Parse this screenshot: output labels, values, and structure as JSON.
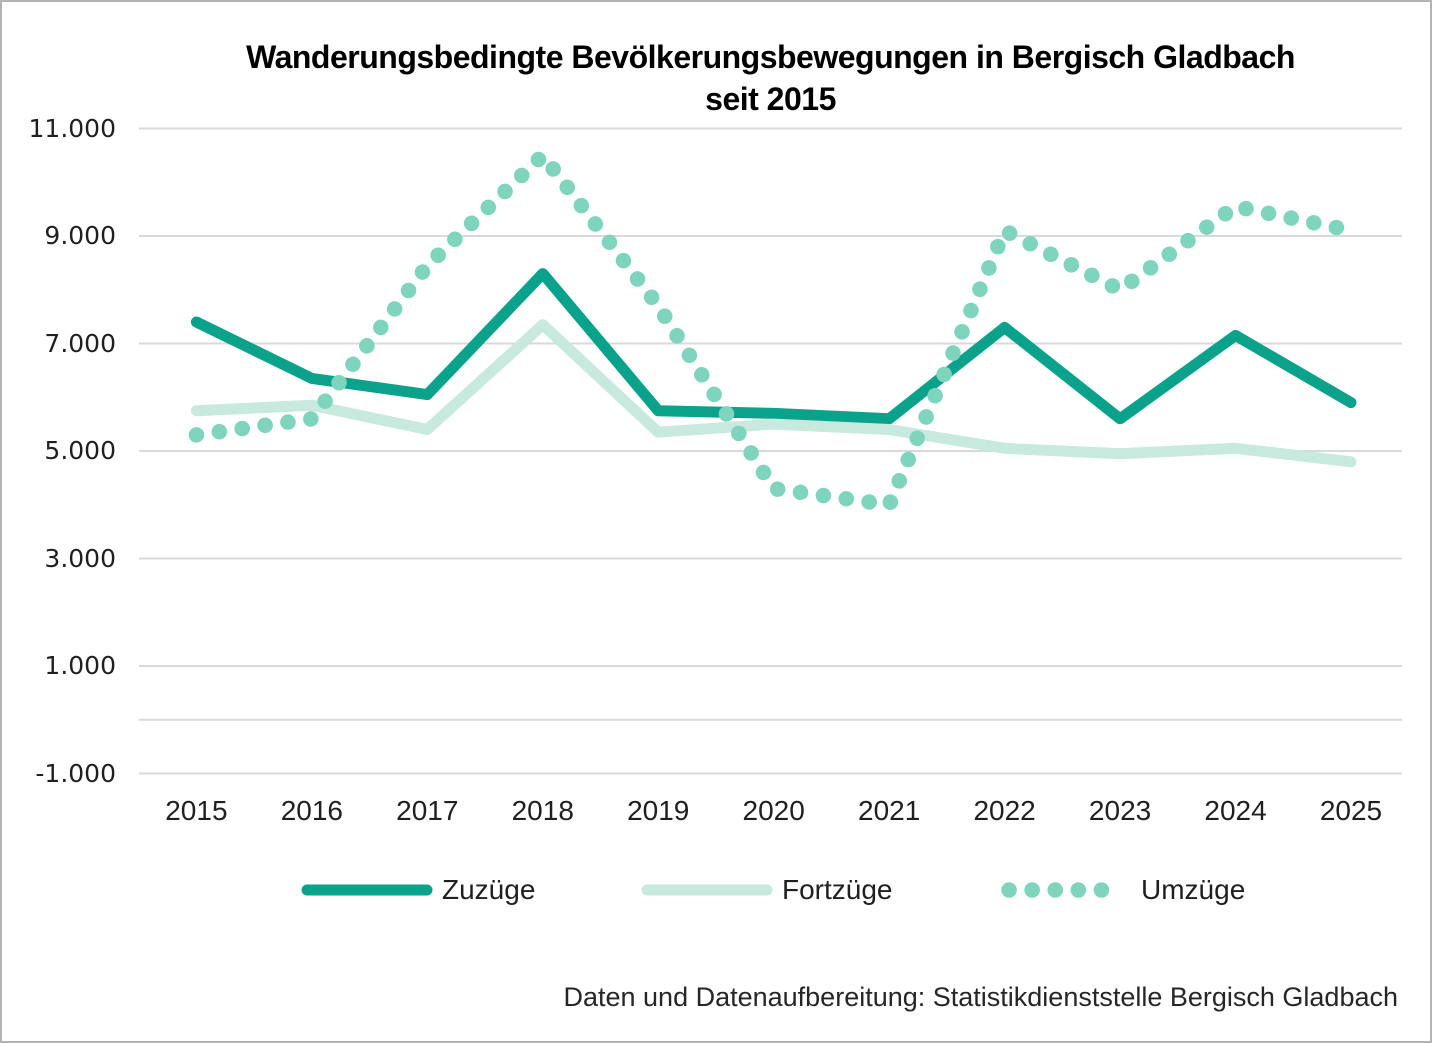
{
  "chart_data": {
    "type": "line",
    "title_line1": "Wanderungsbedingte Bevölkerungsbewegungen in Bergisch Gladbach",
    "title_line2": "seit 2015",
    "categories": [
      "2015",
      "2016",
      "2017",
      "2018",
      "2019",
      "2020",
      "2021",
      "2022",
      "2023",
      "2024",
      "2025"
    ],
    "series": [
      {
        "name": "Zuzüge",
        "line_style": "solid",
        "color": "#0aa28a",
        "values": [
          7400,
          6350,
          6050,
          8300,
          5750,
          5700,
          5600,
          7300,
          5600,
          7150,
          5900
        ]
      },
      {
        "name": "Fortzüge",
        "line_style": "solid",
        "color": "#c7e9de",
        "values": [
          5750,
          5850,
          5400,
          7350,
          5350,
          5500,
          5400,
          5050,
          4950,
          5050,
          4800
        ]
      },
      {
        "name": "Umzüge",
        "line_style": "dotted",
        "color": "#7fd4be",
        "values": [
          5300,
          5600,
          8450,
          10500,
          7700,
          4300,
          4000,
          9100,
          8000,
          9550,
          9100
        ]
      }
    ],
    "ylim": [
      -1000,
      11000
    ],
    "yticks": [
      {
        "value": 11000,
        "label": "11.000"
      },
      {
        "value": 9000,
        "label": "9.000"
      },
      {
        "value": 7000,
        "label": "7.000"
      },
      {
        "value": 5000,
        "label": "5.000"
      },
      {
        "value": 3000,
        "label": "3.000"
      },
      {
        "value": 1000,
        "label": "1.000"
      },
      {
        "value": -1000,
        "label": "-1.000"
      }
    ],
    "zero_line": 0,
    "grid": true,
    "legend_position": "bottom",
    "footer": "Daten und Datenaufbereitung: Statistikdienststelle Bergisch Gladbach"
  },
  "colors": {
    "grid": "#d9d9d9",
    "axis_text": "#1f1f1f",
    "title_text": "#000000",
    "background": "#ffffff",
    "frame_border": "#b3b3b3"
  }
}
